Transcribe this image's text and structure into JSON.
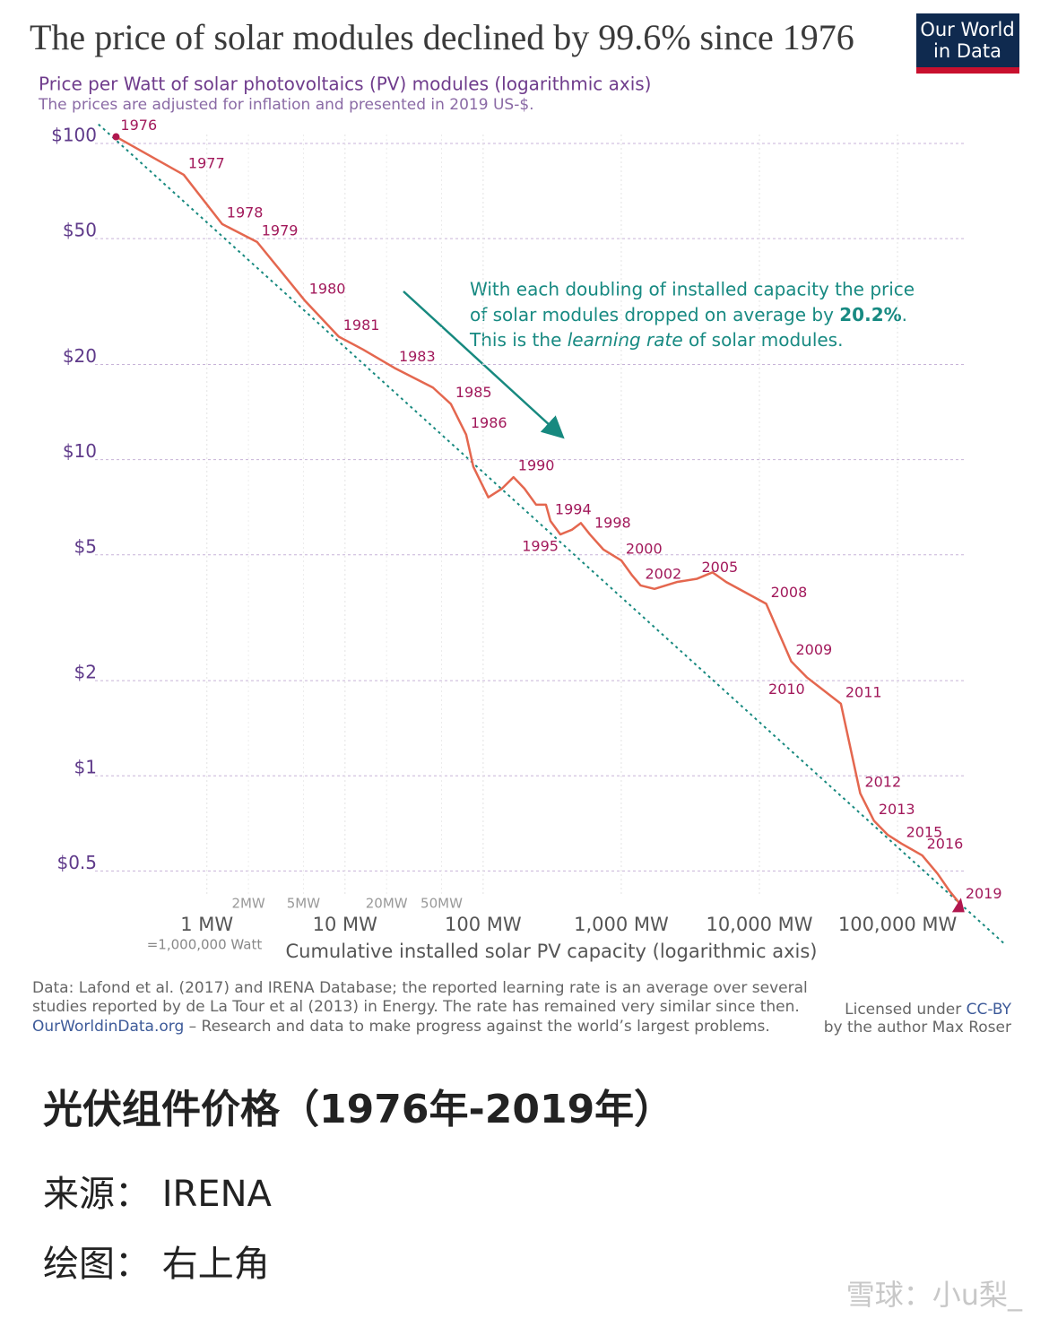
{
  "chart_data": {
    "type": "line",
    "title": "The price of solar modules declined by 99.6% since 1976",
    "logo": [
      "Our World",
      "in Data"
    ],
    "subtitle": "Price per Watt of solar photovoltaics (PV) modules (logarithmic axis)",
    "note": "The prices are adjusted for inflation and presented in 2019 US-$.",
    "x_label": "Cumulative installed solar PV capacity (logarithmic axis)",
    "x_note": "=1,000,000 Watt",
    "annotation": [
      "With each doubling of installed capacity the price",
      "of solar modules dropped on average by ",
      "20.2%",
      ".",
      "This is the ",
      "learning rate",
      " of solar modules."
    ],
    "xscale": "log",
    "yscale": "log",
    "xlim": [
      0.155,
      302000
    ],
    "ylim": [
      0.35,
      115
    ],
    "xticks": [
      {
        "value": 1,
        "label": "1 MW"
      },
      {
        "value": 10,
        "label": "10 MW"
      },
      {
        "value": 100,
        "label": "100 MW"
      },
      {
        "value": 1000,
        "label": "1,000 MW"
      },
      {
        "value": 10000,
        "label": "10,000 MW"
      },
      {
        "value": 100000,
        "label": "100,000 MW"
      }
    ],
    "xticks_minor": [
      {
        "value": 2,
        "label": "2MW"
      },
      {
        "value": 5,
        "label": "5MW"
      },
      {
        "value": 20,
        "label": "20MW"
      },
      {
        "value": 50,
        "label": "50MW"
      }
    ],
    "yticks": [
      {
        "value": 100,
        "label": "$100"
      },
      {
        "value": 50,
        "label": "$50"
      },
      {
        "value": 20,
        "label": "$20"
      },
      {
        "value": 10,
        "label": "$10"
      },
      {
        "value": 5,
        "label": "$5"
      },
      {
        "value": 2,
        "label": "$2"
      },
      {
        "value": 1,
        "label": "$1"
      },
      {
        "value": 0.5,
        "label": "$0.5"
      }
    ],
    "grid": true,
    "series": [
      {
        "color": "#e4674f",
        "x": [
          0.22,
          0.68,
          1.29,
          2.31,
          5.1,
          9.0,
          13.5,
          22.8,
          43.3,
          58.4,
          75.3,
          84.9,
          109,
          137,
          166,
          199,
          242,
          285,
          307,
          362,
          439,
          510,
          593,
          741,
          1000,
          1200,
          1380,
          1740,
          2520,
          3540,
          4580,
          5750,
          11200,
          17000,
          22000,
          38900,
          53700,
          67600,
          85100,
          107000,
          151000,
          195000,
          240000,
          288000
        ],
        "values": [
          105,
          79.6,
          55.6,
          48.8,
          31.9,
          24.5,
          22.3,
          19.5,
          16.9,
          15.0,
          12.0,
          9.5,
          7.6,
          8.1,
          8.8,
          8.1,
          7.2,
          7.2,
          6.4,
          5.8,
          6.0,
          6.3,
          5.8,
          5.2,
          4.8,
          4.3,
          4.0,
          3.9,
          4.1,
          4.2,
          4.4,
          4.1,
          3.5,
          2.3,
          2.05,
          1.69,
          0.88,
          0.72,
          0.65,
          0.61,
          0.56,
          0.49,
          0.43,
          0.39
        ],
        "point_labels": [
          "1976",
          "1977",
          "1978",
          "1979",
          "1980",
          "1981",
          null,
          "1983",
          null,
          "1985",
          "1986",
          null,
          null,
          null,
          "1990",
          null,
          null,
          null,
          "1994",
          "1995",
          null,
          null,
          "1998",
          null,
          "2000",
          null,
          "2002",
          null,
          null,
          "2005",
          null,
          null,
          "2008",
          "2009",
          "2010",
          "2011",
          "2012",
          "2013",
          null,
          "2015",
          "2016",
          null,
          null,
          "2019"
        ]
      }
    ],
    "trend_line": {
      "color": "#17897f",
      "x": [
        0.164,
        590000
      ],
      "values": [
        115,
        0.295
      ]
    },
    "source": [
      "Data: Lafond et al. (2017) and IRENA Database; the reported learning rate is an average over several",
      "studies reported by de La Tour et al (2013) in Energy. The rate has remained very similar since then."
    ],
    "site": [
      "OurWorldinData.org",
      " – Research and data to make progress against the world’s largest problems."
    ],
    "license": [
      "Licensed under ",
      "CC-BY",
      "by the author Max Roser"
    ]
  },
  "captions": [
    "光伏组件价格（1976年-2019年）",
    "来源： IRENA",
    "绘图： 右上角"
  ],
  "watermark": "雪球：小u梨_"
}
